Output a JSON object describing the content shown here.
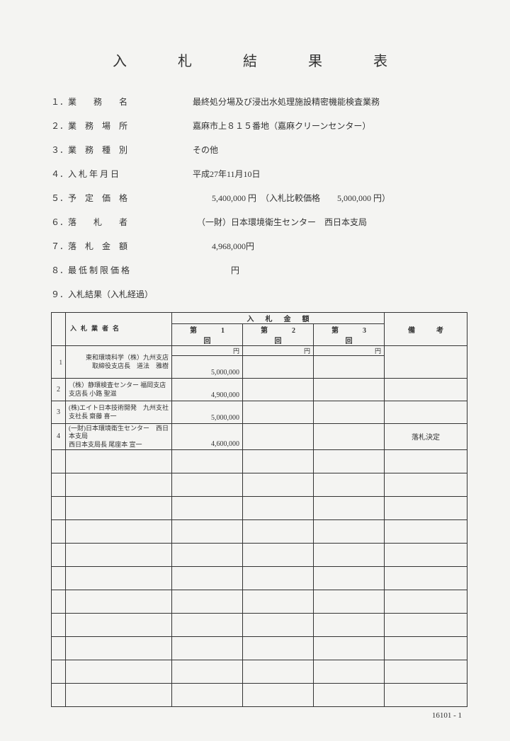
{
  "title": "入　札　結　果　表",
  "fields": [
    {
      "label": "１．業　　務　　名",
      "value": "最終処分場及び浸出水処理施設精密機能検査業務"
    },
    {
      "label": "２．業　務　場　所",
      "value": "嘉麻市上８１５番地（嘉麻クリーンセンター）"
    },
    {
      "label": "３．業　務　種　別",
      "value": "その他"
    },
    {
      "label": "４．入 札 年 月 日",
      "value": "平成27年11月10日"
    },
    {
      "label": "５．予　定　価　格",
      "value": "         5,400,000 円　（入札比較価格　　5,000,000 円）"
    },
    {
      "label": "６．落　　札　　者",
      "value": "  （一財）日本環境衛生センター　西日本支局"
    },
    {
      "label": "７．落　札　金　額",
      "value": "         4,968,000円"
    },
    {
      "label": "８．最 低 制 限 価 格",
      "value": "                  円"
    },
    {
      "label": "９．入札結果（入札経過）",
      "value": ""
    }
  ],
  "table": {
    "header_bidder": "入札業者名",
    "header_amount": "入札金額",
    "header_note": "備考",
    "rounds": [
      "第　1　回",
      "第　2　回",
      "第　3　回"
    ],
    "unit": "円",
    "rows": [
      {
        "num": "1",
        "name": "東和環境科学（株）九州支店\n取締役支店長　道法　雅樹",
        "amt1": "5,000,000",
        "amt2": "",
        "amt3": "",
        "note": ""
      },
      {
        "num": "2",
        "name": "（株）静環検査センター 福岡支店\n支店長 小路 聖滋",
        "amt1": "4,900,000",
        "amt2": "",
        "amt3": "",
        "note": ""
      },
      {
        "num": "3",
        "name": "(株)エイト日本技術開発　九州支社\n支社長 齋藤 喜一",
        "amt1": "5,000,000",
        "amt2": "",
        "amt3": "",
        "note": ""
      },
      {
        "num": "4",
        "name": "(一財)日本環境衛生センター　西日本支局\n西日本支局長 尾座本 宣一",
        "amt1": "4,600,000",
        "amt2": "",
        "amt3": "",
        "note": "落札決定"
      }
    ],
    "empty_rows": 11
  },
  "page_number": "16101 - 1"
}
